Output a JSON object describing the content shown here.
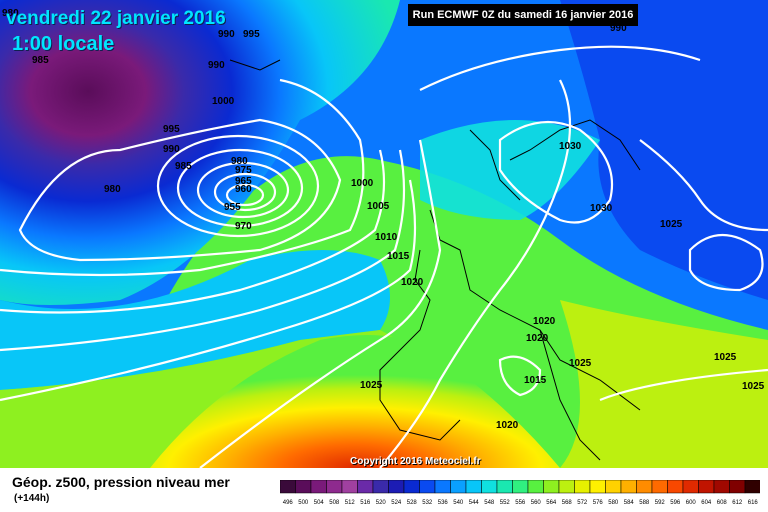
{
  "header": {
    "date": "vendredi 22 janvier 2016",
    "time": "1:00 locale",
    "run": "Run ECMWF 0Z du samedi 16 janvier 2016"
  },
  "copyright": "Copyright 2016 Meteociel.fr",
  "legend": {
    "title": "Géop. z500, pression niveau mer",
    "subtitle": "(+144h)",
    "scale_values": [
      "496",
      "500",
      "504",
      "508",
      "512",
      "516",
      "520",
      "524",
      "528",
      "532",
      "536",
      "540",
      "544",
      "548",
      "552",
      "556",
      "560",
      "564",
      "568",
      "572",
      "576",
      "580",
      "584",
      "588",
      "592",
      "596",
      "600",
      "604",
      "608",
      "612",
      "616"
    ],
    "scale_colors": [
      "#3a0a3a",
      "#5a0d5a",
      "#7a1a7a",
      "#8e2a8e",
      "#a040a0",
      "#6a2aa8",
      "#3a2aaa",
      "#1c1cb4",
      "#0a2ad2",
      "#0a4af0",
      "#0a78ff",
      "#0aa0ff",
      "#08c6f8",
      "#10e0e0",
      "#1ae8b0",
      "#30f080",
      "#58f040",
      "#8ef020",
      "#bcf010",
      "#e6f000",
      "#fff000",
      "#ffd200",
      "#ffb000",
      "#ff8c00",
      "#ff6a00",
      "#f84800",
      "#e02a00",
      "#c01400",
      "#a00800",
      "#800000",
      "#300000"
    ]
  },
  "isobar_labels": [
    "980",
    "990",
    "995",
    "990",
    "985",
    "990",
    "1000",
    "995",
    "990",
    "985",
    "980",
    "980",
    "975",
    "965",
    "960",
    "955",
    "970",
    "1000",
    "1005",
    "1010",
    "1015",
    "1020",
    "1020",
    "1020",
    "1015",
    "1020",
    "1030",
    "1030",
    "1025",
    "1025",
    "1025",
    "1025"
  ]
}
